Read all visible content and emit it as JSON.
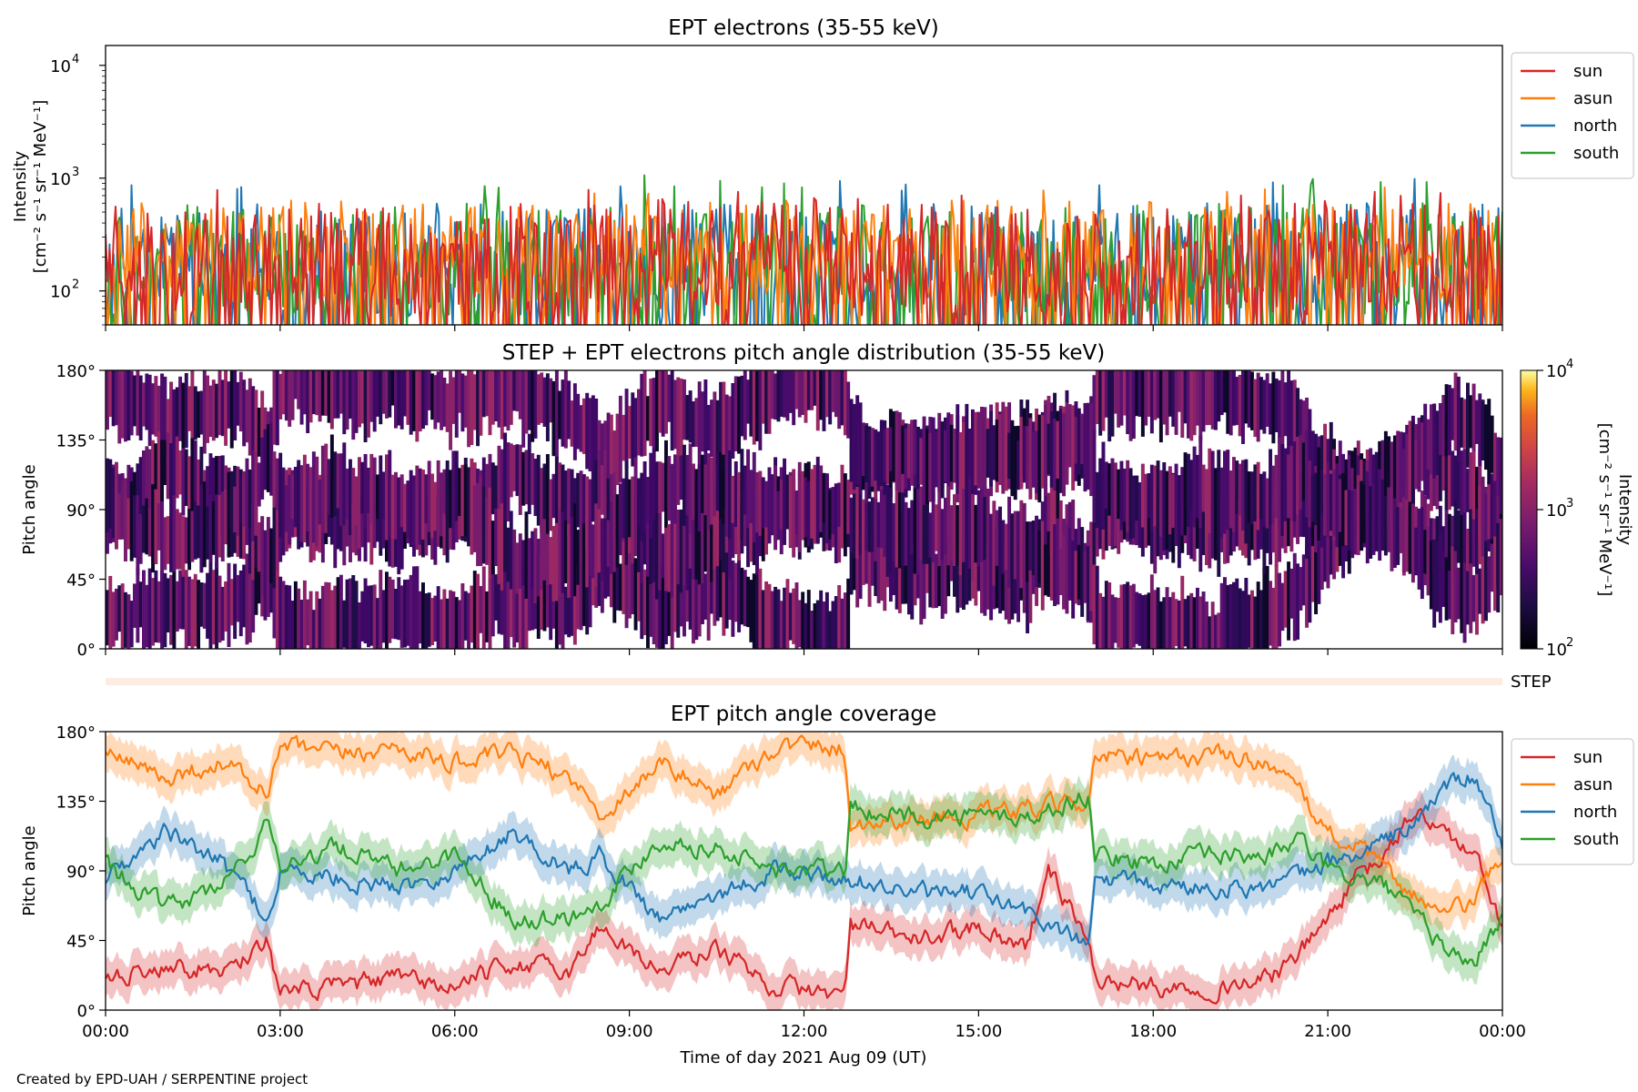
{
  "chart_data": [
    {
      "type": "line",
      "title": "EPT electrons (35-55 keV)",
      "ylabel": "Intensity",
      "ylabel_units": "[cm⁻² s⁻¹ sr⁻¹ MeV⁻¹]",
      "yscale": "log",
      "ylim": [
        50,
        15000
      ],
      "y_ticks": [
        {
          "value": 100,
          "base": "10",
          "exp": "2"
        },
        {
          "value": 1000,
          "base": "10",
          "exp": "3"
        },
        {
          "value": 10000,
          "base": "10",
          "exp": "4"
        }
      ],
      "xlim_hours": [
        0,
        24
      ],
      "legend": "outside-right",
      "series": [
        {
          "name": "sun",
          "color": "#d62728",
          "typical_range": [
            60,
            600
          ],
          "max": 800
        },
        {
          "name": "asun",
          "color": "#ff7f0e",
          "typical_range": [
            80,
            650
          ],
          "max": 900
        },
        {
          "name": "north",
          "color": "#1f77b4",
          "typical_range": [
            60,
            600
          ],
          "max": 1000
        },
        {
          "name": "south",
          "color": "#2ca02c",
          "typical_range": [
            60,
            600
          ],
          "max": 1100
        }
      ]
    },
    {
      "type": "heatmap",
      "title": "STEP + EPT electrons pitch angle distribution (35-55 keV)",
      "ylabel": "Pitch angle",
      "ylim": [
        0,
        180
      ],
      "y_ticks": [
        "0°",
        "45°",
        "90°",
        "135°",
        "180°"
      ],
      "xlim_hours": [
        0,
        24
      ],
      "colorbar": {
        "label": "Intensity",
        "units": "[cm⁻² s⁻¹ sr⁻¹ MeV⁻¹]",
        "scale": "log",
        "range": [
          100,
          10000
        ],
        "ticks": [
          {
            "value": 100,
            "base": "10",
            "exp": "2"
          },
          {
            "value": 1000,
            "base": "10",
            "exp": "3"
          },
          {
            "value": 10000,
            "base": "10",
            "exp": "4"
          }
        ],
        "colormap": "inferno"
      },
      "typical_intensity": [
        150,
        500
      ],
      "step_label": "STEP"
    },
    {
      "type": "line",
      "title": "EPT pitch angle coverage",
      "ylabel": "Pitch angle",
      "ylim": [
        0,
        180
      ],
      "y_ticks": [
        "0°",
        "45°",
        "90°",
        "135°",
        "180°"
      ],
      "xlim_hours": [
        0,
        24
      ],
      "x_ticks": [
        "00:00",
        "03:00",
        "06:00",
        "09:00",
        "12:00",
        "15:00",
        "18:00",
        "21:00",
        "00:00"
      ],
      "xlabel": "Time of day 2021 Aug 09 (UT)",
      "legend": "outside-right",
      "band_halfwidth_deg": 12,
      "series": [
        {
          "name": "sun",
          "color": "#d62728",
          "t": [
            0,
            1.0,
            2.0,
            2.8,
            3.0,
            4.0,
            5.0,
            6.0,
            7.0,
            8.0,
            8.5,
            9.5,
            10.5,
            11.5,
            12.7,
            12.8,
            14.0,
            15.0,
            15.8,
            16.2,
            16.9,
            17.0,
            18.0,
            19.0,
            20.0,
            20.5,
            21.0,
            21.5,
            22.0,
            22.5,
            23.0,
            23.5,
            24.0
          ],
          "v": [
            20,
            30,
            25,
            45,
            10,
            15,
            20,
            15,
            30,
            25,
            55,
            25,
            40,
            15,
            10,
            55,
            45,
            55,
            40,
            90,
            45,
            20,
            15,
            15,
            20,
            35,
            60,
            85,
            100,
            130,
            115,
            100,
            55
          ]
        },
        {
          "name": "asun",
          "color": "#ff7f0e",
          "t": [
            0,
            1.0,
            2.0,
            2.8,
            3.0,
            4.0,
            5.0,
            6.0,
            7.0,
            8.0,
            8.5,
            9.5,
            10.5,
            11.5,
            12.7,
            12.8,
            14.0,
            15.0,
            16.0,
            16.9,
            17.0,
            18.0,
            19.0,
            20.0,
            20.5,
            21.0,
            21.5,
            22.0,
            22.5,
            23.0,
            23.5,
            24.0
          ],
          "v": [
            165,
            150,
            160,
            140,
            170,
            165,
            170,
            160,
            165,
            150,
            125,
            160,
            140,
            170,
            170,
            120,
            125,
            125,
            130,
            135,
            165,
            160,
            165,
            160,
            140,
            115,
            105,
            90,
            75,
            60,
            70,
            100
          ]
        },
        {
          "name": "north",
          "color": "#1f77b4",
          "t": [
            0,
            1.0,
            2.0,
            2.8,
            3.0,
            4.0,
            5.0,
            6.0,
            7.0,
            8.0,
            8.5,
            9.5,
            10.5,
            11.5,
            12.7,
            12.8,
            14.0,
            15.0,
            16.0,
            16.9,
            17.0,
            18.0,
            19.0,
            20.0,
            20.5,
            21.0,
            21.5,
            22.0,
            22.5,
            23.0,
            23.5,
            24.0
          ],
          "v": [
            85,
            115,
            95,
            60,
            90,
            85,
            80,
            90,
            115,
            90,
            100,
            60,
            75,
            90,
            85,
            85,
            75,
            75,
            60,
            40,
            85,
            80,
            80,
            80,
            85,
            95,
            100,
            110,
            120,
            145,
            150,
            110
          ]
        },
        {
          "name": "south",
          "color": "#2ca02c",
          "t": [
            0,
            1.0,
            2.0,
            2.8,
            3.0,
            4.0,
            5.0,
            6.0,
            7.0,
            8.0,
            8.5,
            9.5,
            10.5,
            11.5,
            12.7,
            12.8,
            14.0,
            15.0,
            16.0,
            16.9,
            17.0,
            18.0,
            19.0,
            20.0,
            20.5,
            21.0,
            21.5,
            22.0,
            22.5,
            23.0,
            23.5,
            24.0
          ],
          "v": [
            95,
            65,
            80,
            120,
            95,
            105,
            90,
            100,
            60,
            60,
            70,
            110,
            105,
            90,
            90,
            130,
            125,
            125,
            125,
            140,
            100,
            95,
            100,
            100,
            110,
            90,
            85,
            80,
            60,
            40,
            30,
            60
          ]
        }
      ]
    }
  ],
  "footer": {
    "credit": "Created by EPD-UAH / SERPENTINE project"
  }
}
